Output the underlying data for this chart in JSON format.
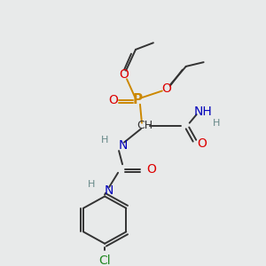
{
  "background_color": "#e8eaea",
  "fig_width": 3.0,
  "fig_height": 3.0,
  "dpi": 100,
  "bond_color": "#333333",
  "bond_lw": 1.4,
  "colors": {
    "P": "#cc8800",
    "O": "#dd0000",
    "N": "#0000bb",
    "C": "#333333",
    "Cl": "#228822",
    "H": "#668888",
    "Et": "#333333"
  }
}
